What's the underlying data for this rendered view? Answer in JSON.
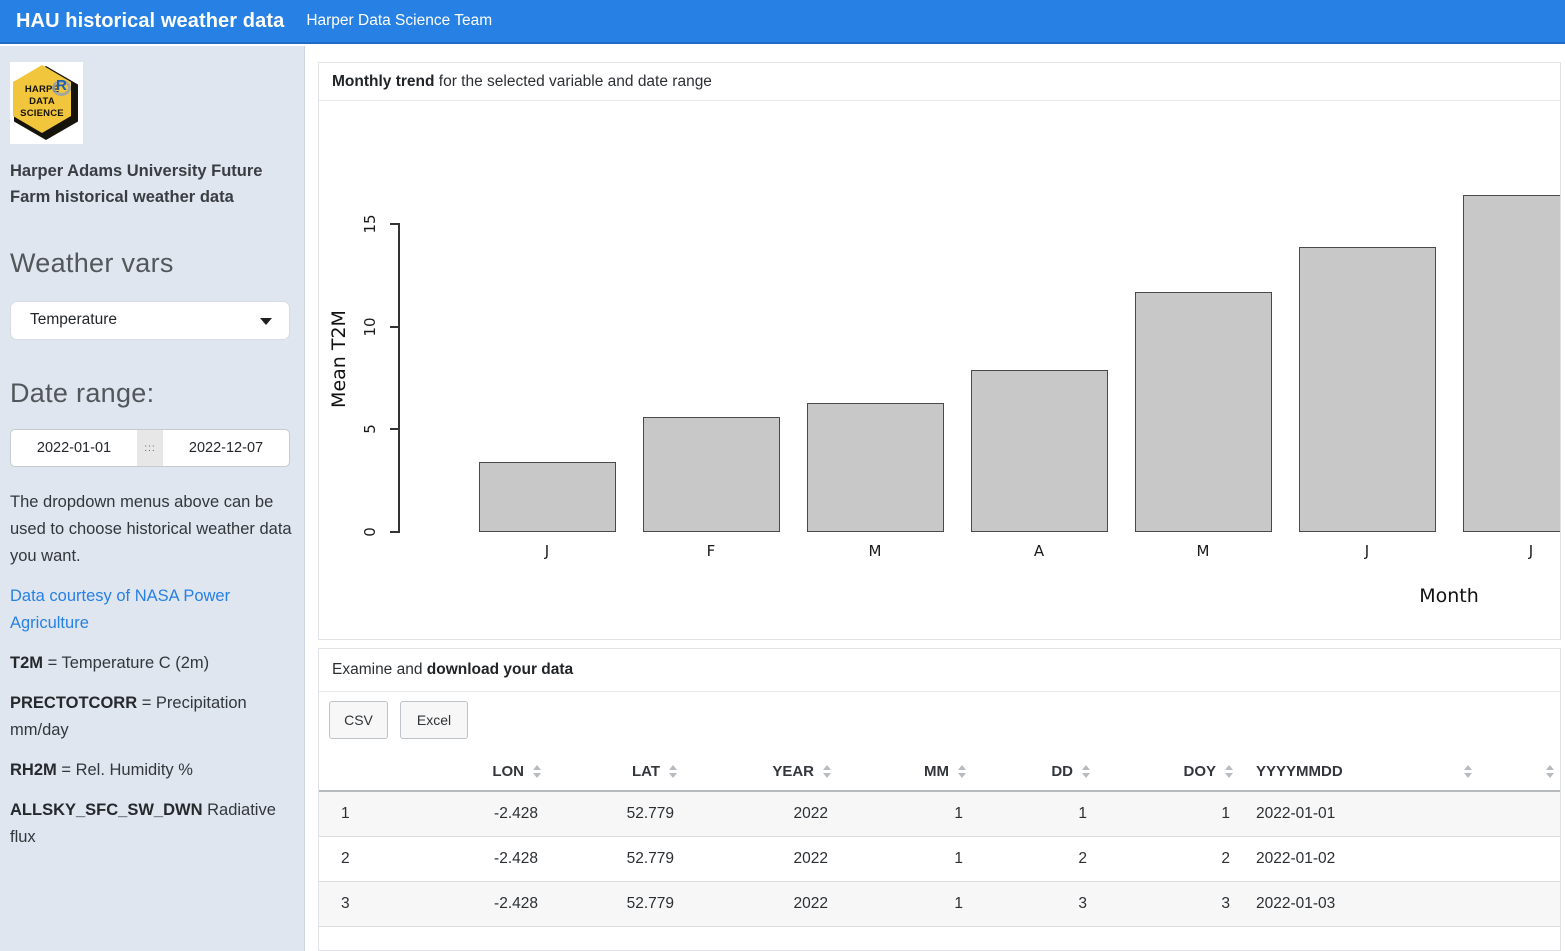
{
  "navbar": {
    "title": "HAU historical weather data",
    "subtitle": "Harper Data Science Team"
  },
  "sidebar": {
    "logo": {
      "word_prefix": "HARPE",
      "r_logo": "R",
      "line2": "DATA",
      "line3": "SCIENCE"
    },
    "app_title": "Harper Adams University Future Farm historical weather data",
    "weather_vars_label": "Weather vars",
    "variable_selected": "Temperature",
    "date_range_label": "Date range:",
    "date_start": "2022-01-01",
    "date_separator": ":::",
    "date_end": "2022-12-07",
    "help_text": "The dropdown menus above can be used to choose historical weather data you want.",
    "link_text": "Data courtesy of NASA Power Agriculture",
    "definitions": [
      {
        "term": "T2M",
        "rest": " = Temperature C (2m)"
      },
      {
        "term": "PRECTOTCORR",
        "rest": " = Precipitation mm/day"
      },
      {
        "term": "RH2M",
        "rest": " = Rel. Humidity %"
      },
      {
        "term": "ALLSKY_SFC_SW_DWN",
        "rest": " Radiative flux"
      }
    ]
  },
  "chart_panel": {
    "title_bold": "Monthly trend",
    "title_rest": " for the selected variable and date range"
  },
  "chart_data": {
    "type": "bar",
    "categories": [
      "J",
      "F",
      "M",
      "A",
      "M",
      "J",
      "J"
    ],
    "values": [
      3.4,
      5.6,
      6.3,
      7.9,
      11.7,
      13.9,
      16.4
    ],
    "title": "",
    "xlabel": "Month",
    "ylabel": "Mean T2M",
    "yticks": [
      0,
      5,
      10,
      15
    ],
    "ylim": [
      0,
      16.5
    ],
    "grid": false,
    "bar_fill": "#c8c8c8",
    "bar_border": "#4a4a4a"
  },
  "table_panel": {
    "title_regular": "Examine and ",
    "title_bold": "download your data",
    "csv_label": "CSV",
    "excel_label": "Excel",
    "columns": [
      "",
      "LON",
      "LAT",
      "YEAR",
      "MM",
      "DD",
      "DOY",
      "YYYYMMDD",
      ""
    ],
    "rows": [
      [
        "1",
        "-2.428",
        "52.779",
        "2022",
        "1",
        "1",
        "1",
        "2022-01-01",
        ""
      ],
      [
        "2",
        "-2.428",
        "52.779",
        "2022",
        "1",
        "2",
        "2",
        "2022-01-02",
        ""
      ],
      [
        "3",
        "-2.428",
        "52.779",
        "2022",
        "1",
        "3",
        "3",
        "2022-01-03",
        ""
      ]
    ]
  },
  "colors": {
    "navbar": "#2780e3",
    "sidebar_bg": "#dfe6f0",
    "link": "#2780e3",
    "bar_fill": "#c8c8c8",
    "bar_border": "#4a4a4a",
    "logo_hex": "#f2c63c"
  }
}
